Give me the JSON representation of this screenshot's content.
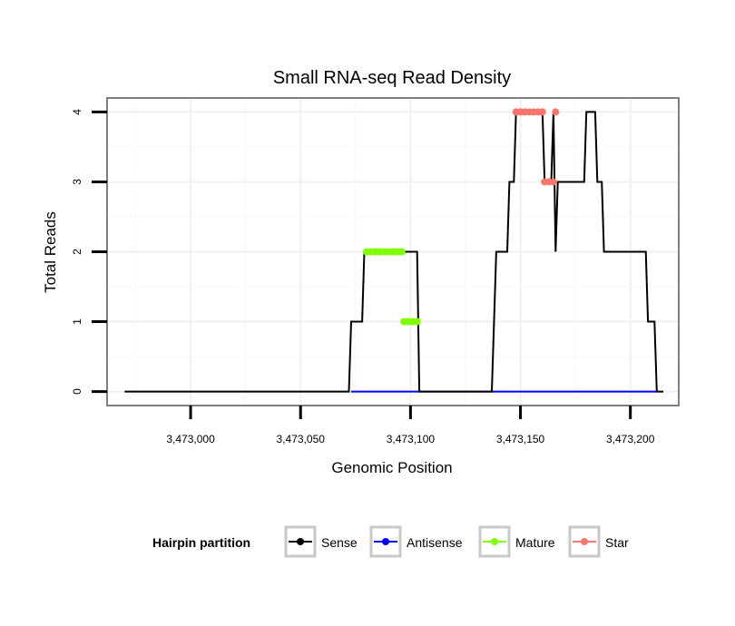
{
  "chart_data": {
    "type": "line",
    "title": "Small RNA-seq Read Density",
    "xlabel": "Genomic Position",
    "ylabel": "Total Reads",
    "xlim": [
      3472962,
      3473222
    ],
    "ylim": [
      -0.2,
      4.2
    ],
    "x_ticks": [
      3473000,
      3473050,
      3473100,
      3473150,
      3473200
    ],
    "x_tick_labels": [
      "3,473,000",
      "3,473,050",
      "3,473,100",
      "3,473,150",
      "3,473,200"
    ],
    "y_ticks": [
      0,
      1,
      2,
      3,
      4
    ],
    "y_tick_labels": [
      "0",
      "1",
      "2",
      "3",
      "4"
    ],
    "grid": true,
    "legend": {
      "title": "Hairpin partition",
      "position": "bottom",
      "entries": [
        "Sense",
        "Antisense",
        "Mature",
        "Star"
      ]
    },
    "series": [
      {
        "name": "Sense",
        "color": "#000000",
        "style": "line",
        "x": [
          3472970,
          3473072,
          3473073,
          3473078,
          3473079,
          3473103,
          3473104,
          3473137,
          3473139,
          3473144,
          3473145,
          3473147,
          3473148,
          3473160,
          3473161,
          3473164,
          3473165,
          3473166,
          3473167,
          3473179,
          3473180,
          3473184,
          3473185,
          3473187,
          3473188,
          3473207,
          3473208,
          3473211,
          3473212,
          3473215
        ],
        "y": [
          0,
          0,
          1,
          1,
          2,
          2,
          0,
          0,
          2,
          2,
          3,
          3,
          4,
          4,
          3,
          3,
          4,
          2,
          3,
          3,
          4,
          4,
          3,
          3,
          2,
          2,
          1,
          1,
          0,
          0
        ]
      },
      {
        "name": "Antisense",
        "color": "#0000ff",
        "style": "line",
        "x": [
          3473073,
          3473212
        ],
        "y": [
          0,
          0
        ]
      },
      {
        "name": "Mature",
        "color": "#7fff00",
        "style": "points",
        "x": [
          3473080,
          3473082,
          3473084,
          3473086,
          3473088,
          3473090,
          3473092,
          3473094,
          3473096,
          3473097,
          3473099,
          3473101,
          3473103
        ],
        "y": [
          2,
          2,
          2,
          2,
          2,
          2,
          2,
          2,
          2,
          1,
          1,
          1,
          1
        ]
      },
      {
        "name": "Star",
        "color": "#f8766d",
        "style": "points",
        "x": [
          3473148,
          3473150,
          3473152,
          3473154,
          3473156,
          3473158,
          3473160,
          3473161,
          3473163,
          3473165,
          3473166
        ],
        "y": [
          4,
          4,
          4,
          4,
          4,
          4,
          4,
          3,
          3,
          3,
          4
        ]
      }
    ]
  }
}
